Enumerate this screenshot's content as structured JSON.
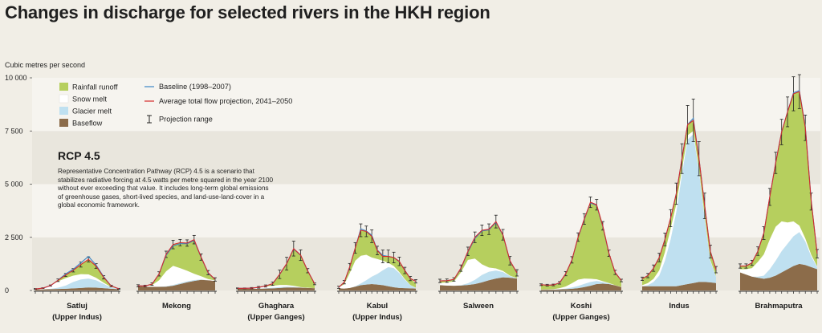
{
  "title": "Changes in discharge for selected rivers in the HKH region",
  "chart_data": {
    "type": "area",
    "subtype": "stacked-area-with-lines",
    "ylabel": "Cubic metres per second",
    "ylim": [
      0,
      10000
    ],
    "yticks": [
      0,
      2500,
      5000,
      7500,
      10000
    ],
    "ytick_labels": [
      "0",
      "2 500",
      "5 000",
      "7 500",
      "10 000"
    ],
    "grid": "horizontal bands",
    "legend_position": "top-left",
    "legend": {
      "areas": [
        {
          "name": "Rainfall runoff",
          "color": "#b6cf5e"
        },
        {
          "name": "Snow melt",
          "color": "#ffffff"
        },
        {
          "name": "Glacier melt",
          "color": "#bfe0f0"
        },
        {
          "name": "Baseflow",
          "color": "#8c6c4a"
        }
      ],
      "lines": [
        {
          "name": "Baseline (1998–2007)",
          "color": "#3b86c4"
        },
        {
          "name": "Average total flow projection, 2041–2050",
          "color": "#d42a2a"
        }
      ],
      "range_label": "Projection range"
    },
    "annotation": {
      "title": "RCP 4.5",
      "lines": [
        "Representative Concentration Pathway (RCP) 4.5 is a scenario that",
        "stabilizes radiative forcing at 4.5 watts per metre squared in the year 2100",
        "without ever exceeding that value. It includes long-term global emissions",
        "of greenhouse gases, short-lived species, and land-use-land-cover in a",
        "global economic framework."
      ]
    },
    "rivers": [
      {
        "name": "Satluj",
        "sub": "(Upper Indus)",
        "baseflow": [
          50,
          50,
          60,
          70,
          80,
          100,
          120,
          140,
          130,
          110,
          80,
          60
        ],
        "glacier": [
          0,
          0,
          20,
          60,
          150,
          300,
          400,
          420,
          350,
          200,
          60,
          10
        ],
        "snow": [
          20,
          60,
          150,
          300,
          350,
          300,
          250,
          200,
          120,
          60,
          20,
          10
        ],
        "rain": [
          0,
          0,
          0,
          50,
          150,
          250,
          450,
          700,
          550,
          250,
          50,
          0
        ],
        "total": [
          70,
          110,
          230,
          480,
          730,
          950,
          1220,
          1460,
          1150,
          620,
          210,
          80
        ],
        "baseline": [
          70,
          110,
          220,
          490,
          780,
          1000,
          1300,
          1600,
          1200,
          650,
          210,
          80
        ],
        "err": [
          20,
          20,
          30,
          60,
          70,
          80,
          120,
          120,
          110,
          80,
          40,
          20
        ]
      },
      {
        "name": "Mekong",
        "sub": "",
        "baseflow": [
          200,
          180,
          170,
          170,
          180,
          220,
          300,
          380,
          450,
          500,
          480,
          450
        ],
        "glacier": [
          0,
          0,
          0,
          10,
          20,
          40,
          50,
          50,
          40,
          20,
          0,
          0
        ],
        "snow": [
          20,
          30,
          80,
          300,
          700,
          900,
          700,
          500,
          300,
          150,
          60,
          20
        ],
        "rain": [
          0,
          0,
          50,
          300,
          800,
          1000,
          1200,
          1300,
          1600,
          900,
          300,
          50
        ],
        "total": [
          220,
          210,
          300,
          780,
          1700,
          2160,
          2250,
          2230,
          2390,
          1570,
          840,
          520
        ],
        "baseline": [
          220,
          210,
          300,
          770,
          1650,
          2100,
          2200,
          2200,
          2350,
          1550,
          820,
          510
        ],
        "err": [
          50,
          40,
          60,
          100,
          150,
          200,
          150,
          150,
          200,
          150,
          100,
          80
        ]
      },
      {
        "name": "Ghaghara",
        "sub": "(Upper Ganges)",
        "baseflow": [
          100,
          90,
          80,
          80,
          90,
          100,
          120,
          140,
          140,
          130,
          120,
          110
        ],
        "glacier": [
          0,
          0,
          0,
          10,
          20,
          30,
          40,
          40,
          30,
          10,
          0,
          0
        ],
        "snow": [
          0,
          10,
          30,
          60,
          80,
          90,
          100,
          80,
          50,
          20,
          10,
          0
        ],
        "rain": [
          0,
          0,
          0,
          0,
          20,
          100,
          500,
          1000,
          1750,
          1500,
          800,
          200
        ],
        "total": [
          100,
          100,
          110,
          150,
          210,
          320,
          760,
          1260,
          1970,
          1660,
          930,
          310
        ],
        "baseline": [
          100,
          100,
          110,
          150,
          210,
          320,
          750,
          1250,
          1950,
          1650,
          920,
          310
        ],
        "err": [
          20,
          20,
          30,
          40,
          50,
          80,
          200,
          300,
          350,
          250,
          100,
          40
        ]
      },
      {
        "name": "Kabul",
        "sub": "(Upper Indus)",
        "baseflow": [
          100,
          90,
          120,
          180,
          250,
          280,
          300,
          280,
          250,
          200,
          150,
          120,
          110,
          100,
          90
        ],
        "glacier": [
          0,
          0,
          0,
          20,
          80,
          200,
          350,
          500,
          700,
          900,
          900,
          700,
          400,
          150,
          30
        ],
        "snow": [
          50,
          200,
          700,
          1200,
          1300,
          1200,
          900,
          700,
          450,
          200,
          100,
          50,
          30,
          10,
          10
        ],
        "rain": [
          0,
          100,
          300,
          600,
          1200,
          1100,
          1000,
          400,
          200,
          300,
          400,
          500,
          400,
          300,
          200
        ],
        "total": [
          150,
          390,
          1120,
          2000,
          2830,
          2780,
          2550,
          1880,
          1600,
          1600,
          1550,
          1370,
          940,
          560,
          430
        ],
        "baseline": [
          150,
          380,
          1100,
          2000,
          2900,
          2800,
          2600,
          1900,
          1650,
          1600,
          1550,
          1350,
          950,
          560,
          430
        ],
        "err": [
          50,
          80,
          150,
          250,
          300,
          250,
          300,
          200,
          300,
          300,
          250,
          200,
          150,
          100,
          80
        ]
      },
      {
        "name": "Salween",
        "sub": "",
        "baseflow": [
          250,
          230,
          220,
          230,
          260,
          300,
          380,
          480,
          560,
          620,
          600,
          560
        ],
        "glacier": [
          0,
          0,
          0,
          20,
          80,
          200,
          350,
          400,
          380,
          250,
          80,
          10
        ],
        "snow": [
          100,
          150,
          200,
          600,
          1100,
          1000,
          500,
          200,
          100,
          50,
          20,
          10
        ],
        "rain": [
          100,
          80,
          100,
          200,
          400,
          1000,
          1600,
          1800,
          2200,
          1700,
          700,
          250
        ],
        "total": [
          450,
          460,
          520,
          1050,
          1840,
          2500,
          2830,
          2880,
          3240,
          2620,
          1400,
          830
        ],
        "baseline": [
          450,
          460,
          510,
          1030,
          1800,
          2450,
          2800,
          2850,
          3200,
          2600,
          1380,
          820
        ],
        "err": [
          80,
          80,
          80,
          150,
          200,
          250,
          250,
          250,
          300,
          250,
          200,
          150
        ]
      },
      {
        "name": "Koshi",
        "sub": "(Upper Ganges)",
        "baseflow": [
          40,
          40,
          40,
          50,
          60,
          80,
          110,
          160,
          220,
          300,
          320,
          300,
          240,
          160
        ],
        "glacier": [
          0,
          0,
          0,
          10,
          30,
          60,
          100,
          150,
          180,
          150,
          80,
          30,
          0,
          0
        ],
        "snow": [
          10,
          10,
          20,
          50,
          100,
          200,
          300,
          250,
          150,
          80,
          40,
          20,
          10,
          10
        ],
        "rain": [
          220,
          200,
          200,
          250,
          600,
          1100,
          2000,
          2800,
          3600,
          3500,
          2600,
          1400,
          600,
          300
        ],
        "total": [
          270,
          250,
          260,
          360,
          790,
          1440,
          2510,
          3360,
          4150,
          4030,
          3040,
          1750,
          850,
          470
        ],
        "baseline": [
          270,
          250,
          260,
          350,
          780,
          1420,
          2490,
          3330,
          4120,
          4000,
          3000,
          1730,
          840,
          460
        ],
        "err": [
          40,
          40,
          40,
          60,
          100,
          150,
          200,
          250,
          250,
          250,
          200,
          150,
          100,
          60
        ]
      },
      {
        "name": "Indus",
        "sub": "",
        "baseflow": [
          200,
          200,
          200,
          200,
          200,
          200,
          200,
          250,
          300,
          350,
          400,
          400,
          380,
          350
        ],
        "glacier": [
          0,
          50,
          200,
          500,
          1200,
          2200,
          3500,
          5200,
          6800,
          7000,
          5200,
          3000,
          1000,
          300
        ],
        "snow": [
          50,
          100,
          150,
          250,
          400,
          500,
          350,
          250,
          200,
          150,
          100,
          80,
          50,
          30
        ],
        "rain": [
          300,
          350,
          500,
          600,
          600,
          500,
          500,
          500,
          500,
          500,
          500,
          500,
          400,
          300
        ],
        "total": [
          550,
          700,
          1050,
          1550,
          2400,
          3400,
          4550,
          6200,
          7800,
          8000,
          6200,
          3980,
          1830,
          980
        ],
        "baseline": [
          550,
          700,
          1050,
          1550,
          2400,
          3400,
          4550,
          6200,
          7800,
          8100,
          6200,
          4000,
          1850,
          980
        ],
        "err": [
          80,
          100,
          150,
          200,
          300,
          400,
          500,
          700,
          900,
          1000,
          800,
          600,
          300,
          150
        ]
      },
      {
        "name": "Brahmaputra",
        "sub": "",
        "baseflow": [
          850,
          750,
          650,
          600,
          550,
          600,
          700,
          850,
          1000,
          1150,
          1250,
          1200,
          1100,
          1000
        ],
        "glacier": [
          0,
          0,
          0,
          50,
          150,
          400,
          700,
          1000,
          1200,
          1400,
          1500,
          1100,
          500,
          100
        ],
        "snow": [
          150,
          250,
          400,
          700,
          1000,
          1400,
          1600,
          1400,
          1000,
          700,
          300,
          150,
          80,
          30
        ],
        "rain": [
          150,
          150,
          250,
          500,
          1000,
          2000,
          3000,
          4200,
          5200,
          6000,
          6300,
          5200,
          2500,
          600
        ],
        "total": [
          1150,
          1150,
          1300,
          1850,
          2700,
          4400,
          6000,
          7450,
          8400,
          9250,
          9350,
          7650,
          4180,
          1730
        ],
        "baseline": [
          1150,
          1150,
          1300,
          1850,
          2700,
          4400,
          6000,
          7450,
          8400,
          9300,
          9400,
          7700,
          4200,
          1730
        ],
        "err": [
          100,
          100,
          120,
          200,
          300,
          400,
          500,
          600,
          700,
          800,
          800,
          600,
          400,
          200
        ]
      }
    ]
  }
}
